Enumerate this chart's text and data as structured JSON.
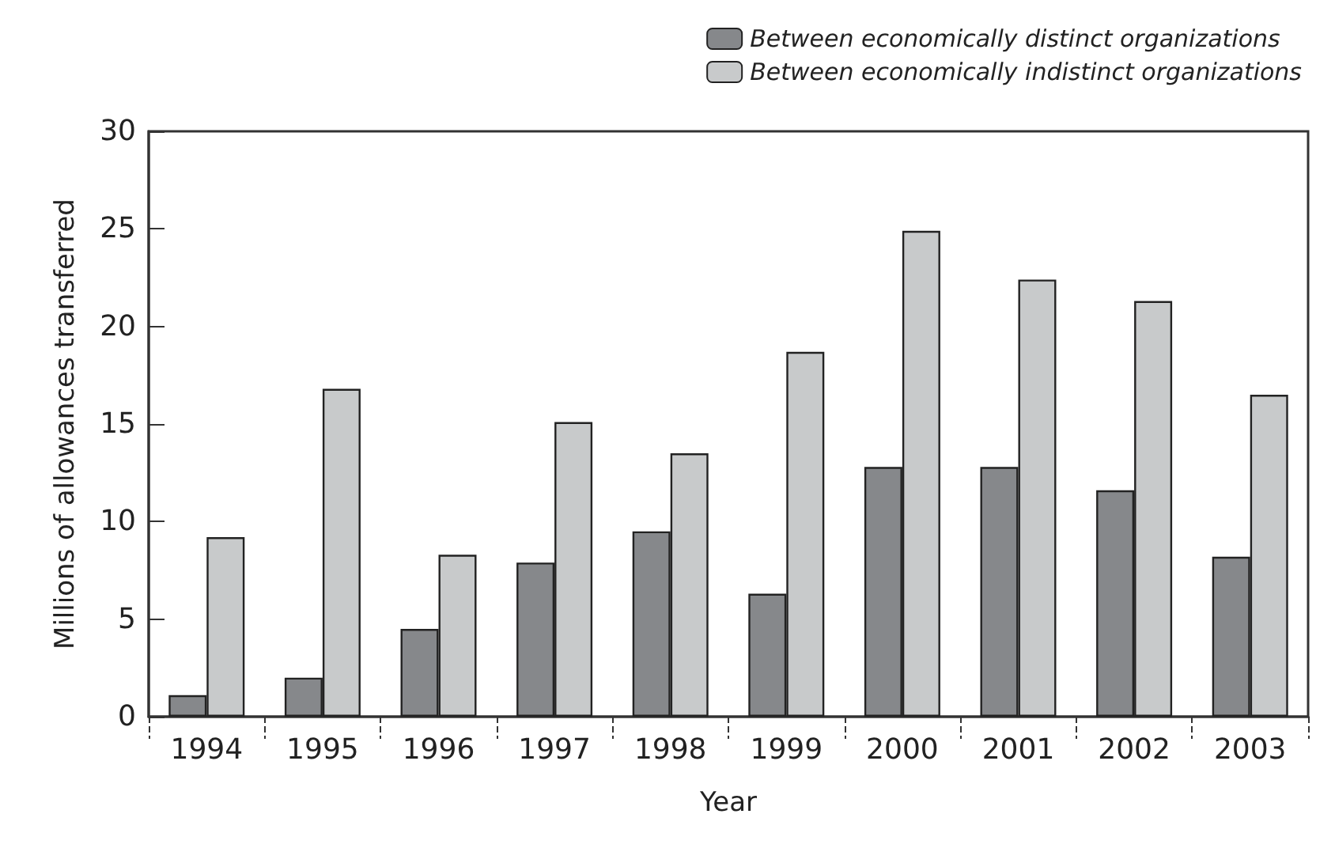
{
  "chart_data": {
    "type": "bar",
    "xlabel": "Year",
    "ylabel": "Millions of allowances transferred",
    "categories": [
      "1994",
      "1995",
      "1996",
      "1997",
      "1998",
      "1999",
      "2000",
      "2001",
      "2002",
      "2003"
    ],
    "series": [
      {
        "name": "Between economically distinct organizations",
        "color": "#86888b",
        "values": [
          1.1,
          2.0,
          4.5,
          7.9,
          9.5,
          6.3,
          12.8,
          12.8,
          11.6,
          8.2
        ]
      },
      {
        "name": "Between economically indistinct organizations",
        "color": "#c8cacb",
        "values": [
          9.2,
          16.8,
          8.3,
          15.1,
          13.5,
          18.7,
          24.9,
          22.4,
          21.3,
          16.5
        ]
      }
    ],
    "ylim": [
      0,
      30
    ],
    "yticks": [
      0,
      5,
      10,
      15,
      20,
      25,
      30
    ],
    "grid": false,
    "legend": "top right"
  }
}
